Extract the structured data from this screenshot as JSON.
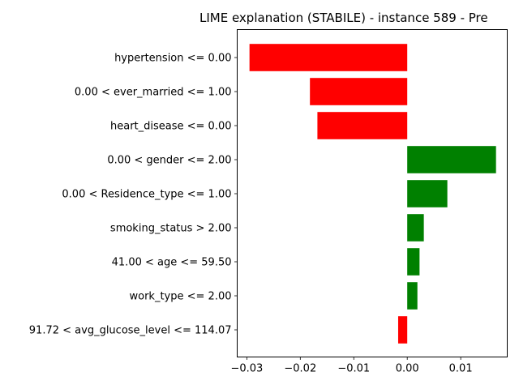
{
  "chart_data": {
    "type": "bar",
    "orientation": "horizontal",
    "title": "LIME explanation (STABILE) - instance 589 - Pre",
    "xlabel": "",
    "ylabel": "",
    "xlim": [
      -0.0318,
      0.0187
    ],
    "xticks": [
      -0.03,
      -0.02,
      -0.01,
      0.0,
      0.01
    ],
    "xtick_labels": [
      "−0.03",
      "−0.02",
      "−0.01",
      "0.00",
      "0.01"
    ],
    "categories": [
      "hypertension <= 0.00",
      "0.00 < ever_married <= 1.00",
      "heart_disease <= 0.00",
      "0.00 < gender <= 2.00",
      "0.00 < Residence_type <= 1.00",
      "smoking_status > 2.00",
      "41.00 < age <= 59.50",
      "work_type <= 2.00",
      "91.72 < avg_glucose_level <= 114.07"
    ],
    "values": [
      -0.0295,
      -0.0182,
      -0.0168,
      0.0166,
      0.0075,
      0.0031,
      0.0023,
      0.0019,
      -0.0017
    ],
    "colors": {
      "positive": "#008000",
      "negative": "#ff0000"
    },
    "grid": false,
    "legend": "none"
  }
}
